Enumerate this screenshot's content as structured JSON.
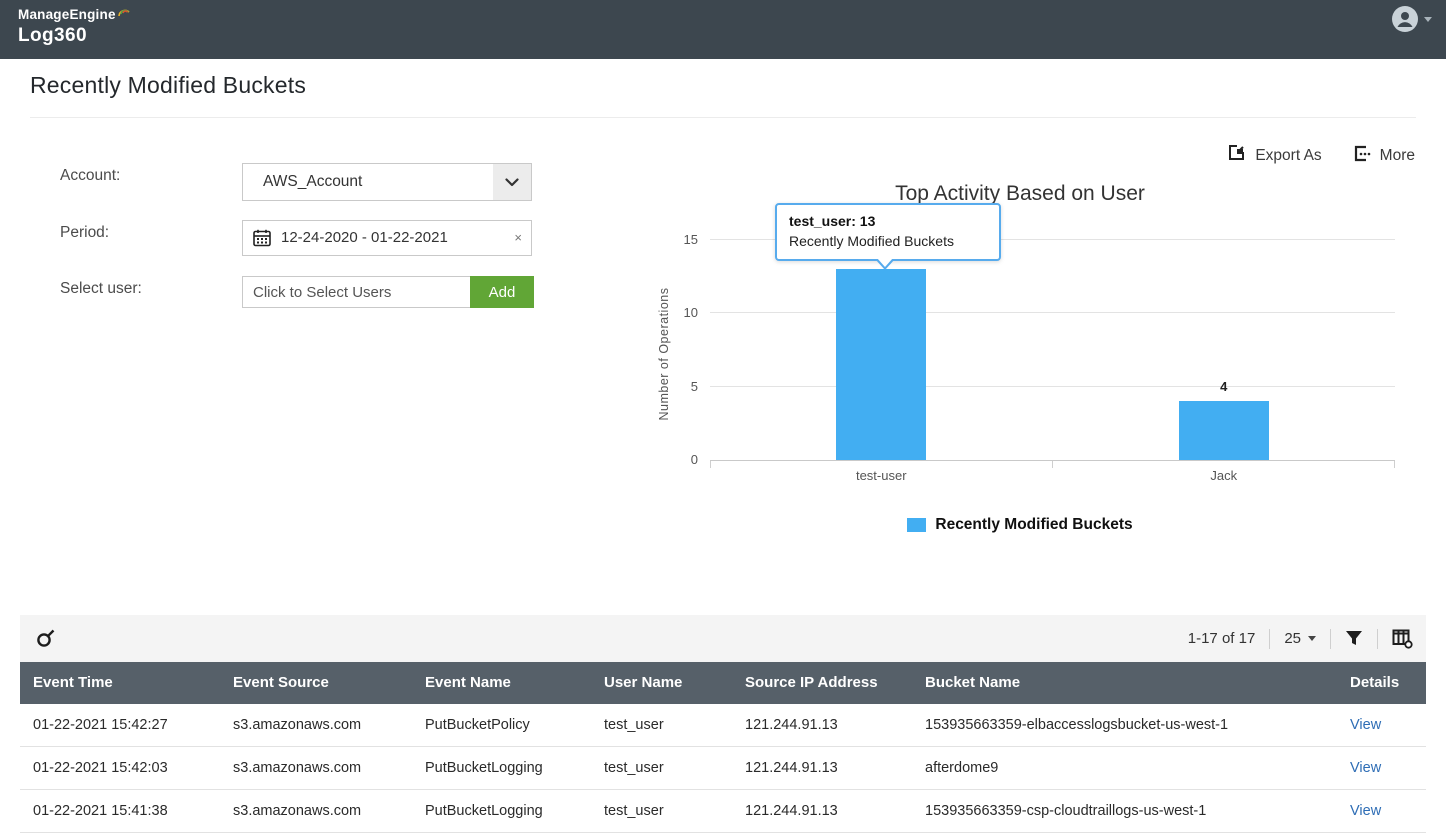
{
  "appbar": {
    "brand_top": "ManageEngine",
    "brand_bottom": "Log360"
  },
  "page": {
    "title": "Recently Modified Buckets"
  },
  "filters": {
    "account_label": "Account:",
    "account_value": "AWS_Account",
    "period_label": "Period:",
    "period_value": "12-24-2020 - 01-22-2021",
    "period_clear_glyph": "×",
    "user_label": "Select user:",
    "user_placeholder": "Click to Select Users",
    "add_button": "Add"
  },
  "actions": {
    "export_label": "Export As",
    "more_label": "More"
  },
  "chart_data": {
    "type": "bar",
    "title": "Top Activity Based on User",
    "ylabel": "Number of Operations",
    "categories": [
      "test-user",
      "Jack"
    ],
    "values": [
      13,
      4
    ],
    "yticks": [
      0,
      5,
      10,
      15
    ],
    "ylim": [
      0,
      15.5
    ],
    "grid": true,
    "bar_color": "#42aef2",
    "legend": [
      "Recently Modified Buckets"
    ],
    "legend_position": "bottom",
    "tooltip": {
      "title": "test_user: 13",
      "subtitle": "Recently Modified Buckets"
    }
  },
  "table": {
    "pagination": "1-17 of 17",
    "page_size": "25",
    "columns": [
      "Event Time",
      "Event Source",
      "Event Name",
      "User Name",
      "Source IP Address",
      "Bucket Name",
      "Details"
    ],
    "rows": [
      {
        "event_time": "01-22-2021 15:42:27",
        "event_source": "s3.amazonaws.com",
        "event_name": "PutBucketPolicy",
        "user_name": "test_user",
        "source_ip": "121.244.91.13",
        "bucket_name": "153935663359-elbaccesslogsbucket-us-west-1",
        "details": "View"
      },
      {
        "event_time": "01-22-2021 15:42:03",
        "event_source": "s3.amazonaws.com",
        "event_name": "PutBucketLogging",
        "user_name": "test_user",
        "source_ip": "121.244.91.13",
        "bucket_name": "afterdome9",
        "details": "View"
      },
      {
        "event_time": "01-22-2021 15:41:38",
        "event_source": "s3.amazonaws.com",
        "event_name": "PutBucketLogging",
        "user_name": "test_user",
        "source_ip": "121.244.91.13",
        "bucket_name": "153935663359-csp-cloudtraillogs-us-west-1",
        "details": "View"
      }
    ]
  },
  "icons": {
    "user_avatar": "user-avatar-icon",
    "export": "export-icon",
    "more": "more-icon",
    "calendar": "calendar-icon",
    "chevron": "chevron-down-icon",
    "search": "search-icon",
    "filter": "filter-funnel-icon",
    "columns": "column-settings-icon"
  },
  "colors": {
    "appbar_bg": "#3d474f",
    "table_header_bg": "#566069",
    "bar_blue": "#42aef2",
    "add_green": "#61a636",
    "link_blue": "#2e6db5"
  }
}
